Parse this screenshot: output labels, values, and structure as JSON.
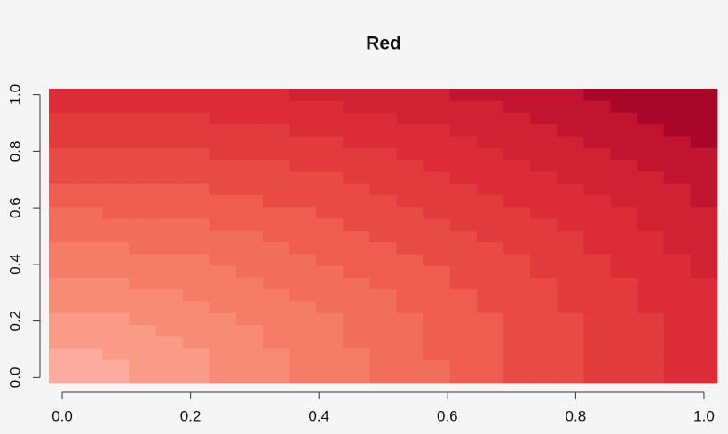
{
  "chart_data": {
    "type": "heatmap",
    "title": "Red",
    "x": [
      0,
      0.0417,
      0.0833,
      0.125,
      0.1667,
      0.2083,
      0.25,
      0.2917,
      0.3333,
      0.375,
      0.4167,
      0.4583,
      0.5,
      0.5417,
      0.5833,
      0.625,
      0.6667,
      0.7083,
      0.75,
      0.7917,
      0.8333,
      0.875,
      0.9167,
      0.9583,
      1
    ],
    "y": [
      0,
      0.0417,
      0.0833,
      0.125,
      0.1667,
      0.2083,
      0.25,
      0.2917,
      0.3333,
      0.375,
      0.4167,
      0.4583,
      0.5,
      0.5417,
      0.5833,
      0.625,
      0.6667,
      0.7083,
      0.75,
      0.7917,
      0.8333,
      0.875,
      0.9167,
      0.9583,
      1
    ],
    "z": [
      [
        0,
        0,
        0,
        1,
        1,
        1,
        2,
        2,
        2,
        3,
        3,
        3,
        4,
        4,
        4,
        5,
        5,
        6,
        6,
        6,
        7,
        7,
        7,
        8,
        8
      ],
      [
        0,
        0,
        0,
        1,
        1,
        1,
        2,
        2,
        2,
        3,
        3,
        3,
        4,
        4,
        4,
        5,
        5,
        6,
        6,
        6,
        7,
        7,
        7,
        8,
        8
      ],
      [
        0,
        0,
        1,
        1,
        1,
        1,
        2,
        2,
        2,
        3,
        3,
        3,
        4,
        4,
        5,
        5,
        5,
        6,
        6,
        6,
        7,
        7,
        7,
        8,
        8
      ],
      [
        1,
        1,
        1,
        1,
        1,
        2,
        2,
        2,
        3,
        3,
        3,
        4,
        4,
        4,
        5,
        5,
        5,
        6,
        6,
        6,
        7,
        7,
        7,
        8,
        8
      ],
      [
        1,
        1,
        1,
        1,
        2,
        2,
        2,
        2,
        3,
        3,
        3,
        4,
        4,
        4,
        5,
        5,
        5,
        6,
        6,
        6,
        7,
        7,
        7,
        8,
        8
      ],
      [
        1,
        1,
        1,
        2,
        2,
        2,
        2,
        3,
        3,
        3,
        3,
        4,
        4,
        4,
        5,
        5,
        5,
        6,
        6,
        6,
        7,
        7,
        7,
        8,
        8
      ],
      [
        2,
        2,
        2,
        2,
        2,
        2,
        3,
        3,
        3,
        3,
        4,
        4,
        4,
        5,
        5,
        5,
        6,
        6,
        6,
        7,
        7,
        7,
        8,
        8,
        8
      ],
      [
        2,
        2,
        2,
        2,
        2,
        3,
        3,
        3,
        3,
        4,
        4,
        4,
        4,
        5,
        5,
        5,
        6,
        6,
        6,
        7,
        7,
        7,
        8,
        8,
        8
      ],
      [
        2,
        2,
        2,
        3,
        3,
        3,
        3,
        3,
        4,
        4,
        4,
        4,
        5,
        5,
        5,
        6,
        6,
        6,
        6,
        7,
        7,
        7,
        8,
        8,
        8
      ],
      [
        3,
        3,
        3,
        3,
        3,
        3,
        3,
        4,
        4,
        4,
        4,
        5,
        5,
        5,
        5,
        6,
        6,
        6,
        7,
        7,
        7,
        8,
        8,
        8,
        9
      ],
      [
        3,
        3,
        3,
        3,
        3,
        3,
        4,
        4,
        4,
        4,
        5,
        5,
        5,
        5,
        6,
        6,
        6,
        6,
        7,
        7,
        7,
        8,
        8,
        8,
        9
      ],
      [
        3,
        3,
        3,
        4,
        4,
        4,
        4,
        4,
        4,
        5,
        5,
        5,
        5,
        6,
        6,
        6,
        6,
        7,
        7,
        7,
        8,
        8,
        8,
        9,
        9
      ],
      [
        4,
        4,
        4,
        4,
        4,
        4,
        4,
        4,
        5,
        5,
        5,
        5,
        6,
        6,
        6,
        6,
        7,
        7,
        7,
        7,
        8,
        8,
        8,
        9,
        9
      ],
      [
        4,
        4,
        4,
        4,
        4,
        4,
        5,
        5,
        5,
        5,
        5,
        6,
        6,
        6,
        6,
        7,
        7,
        7,
        7,
        8,
        8,
        8,
        9,
        9,
        9
      ],
      [
        4,
        4,
        5,
        5,
        5,
        5,
        5,
        5,
        5,
        5,
        6,
        6,
        6,
        6,
        7,
        7,
        7,
        7,
        8,
        8,
        8,
        8,
        9,
        9,
        9
      ],
      [
        5,
        5,
        5,
        5,
        5,
        5,
        5,
        5,
        6,
        6,
        6,
        6,
        6,
        7,
        7,
        7,
        7,
        8,
        8,
        8,
        8,
        9,
        9,
        9,
        10
      ],
      [
        5,
        5,
        5,
        5,
        5,
        5,
        6,
        6,
        6,
        6,
        6,
        6,
        7,
        7,
        7,
        7,
        8,
        8,
        8,
        8,
        9,
        9,
        9,
        9,
        10
      ],
      [
        6,
        6,
        6,
        6,
        6,
        6,
        6,
        6,
        6,
        6,
        6,
        7,
        7,
        7,
        7,
        8,
        8,
        8,
        8,
        9,
        9,
        9,
        9,
        10,
        10
      ],
      [
        6,
        6,
        6,
        6,
        6,
        6,
        6,
        6,
        6,
        7,
        7,
        7,
        7,
        7,
        8,
        8,
        8,
        8,
        9,
        9,
        9,
        9,
        10,
        10,
        10
      ],
      [
        6,
        6,
        6,
        6,
        6,
        6,
        7,
        7,
        7,
        7,
        7,
        7,
        7,
        8,
        8,
        8,
        8,
        9,
        9,
        9,
        9,
        10,
        10,
        10,
        10
      ],
      [
        7,
        7,
        7,
        7,
        7,
        7,
        7,
        7,
        7,
        7,
        7,
        8,
        8,
        8,
        8,
        8,
        9,
        9,
        9,
        9,
        10,
        10,
        10,
        10,
        11
      ],
      [
        7,
        7,
        7,
        7,
        7,
        7,
        7,
        7,
        7,
        8,
        8,
        8,
        8,
        8,
        8,
        9,
        9,
        9,
        9,
        10,
        10,
        10,
        10,
        11,
        11
      ],
      [
        7,
        7,
        7,
        7,
        7,
        7,
        8,
        8,
        8,
        8,
        8,
        8,
        8,
        9,
        9,
        9,
        9,
        9,
        10,
        10,
        10,
        10,
        11,
        11,
        11
      ],
      [
        8,
        8,
        8,
        8,
        8,
        8,
        8,
        8,
        8,
        8,
        8,
        9,
        9,
        9,
        9,
        9,
        9,
        10,
        10,
        10,
        10,
        11,
        11,
        11,
        11
      ],
      [
        8,
        8,
        8,
        8,
        8,
        8,
        8,
        8,
        8,
        9,
        9,
        9,
        9,
        9,
        9,
        10,
        10,
        10,
        10,
        10,
        11,
        11,
        11,
        11,
        11
      ]
    ],
    "colors": [
      "#fcab9e",
      "#fa9b88",
      "#f88b76",
      "#f57d67",
      "#f26e5c",
      "#ee5d4f",
      "#e84b44",
      "#e13b3d",
      "#db2c38",
      "#d02233",
      "#c0142f",
      "#a8072a"
    ],
    "xlim": [
      -0.0208,
      1.0208
    ],
    "ylim": [
      -0.0208,
      1.0208
    ],
    "xticks": [
      {
        "value": 0,
        "label": "0.0"
      },
      0.2,
      0.4,
      0.6,
      0.8,
      {
        "value": 1,
        "label": "1.0"
      }
    ],
    "yticks": [
      {
        "value": 0,
        "label": "0.0"
      },
      0.2,
      0.4,
      0.6,
      0.8,
      {
        "value": 1,
        "label": "1.0"
      }
    ]
  }
}
